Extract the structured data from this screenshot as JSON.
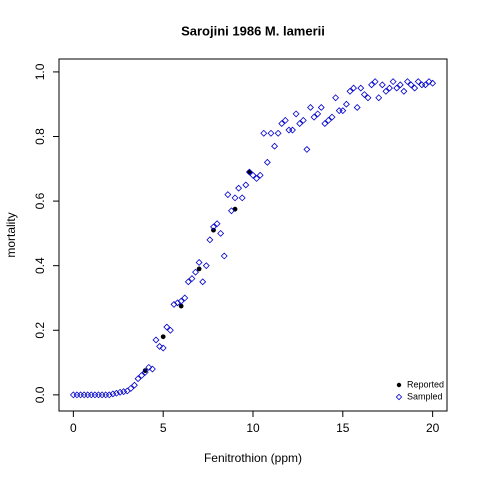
{
  "chart_data": {
    "type": "scatter",
    "title": "Sarojini 1986 M. lamerii",
    "xlabel": "Fenitrothion (ppm)",
    "ylabel": "mortality",
    "xlim": [
      -0.8,
      20.8
    ],
    "xticks": [
      0,
      5,
      10,
      15,
      20
    ],
    "ylim": [
      -0.05,
      1.04
    ],
    "yticks": [
      {
        "value": 0,
        "label": "0.0"
      },
      0.2,
      0.4,
      0.6,
      0.8,
      {
        "value": 1,
        "label": "1.0"
      }
    ],
    "legend": "bottomright",
    "series": [
      {
        "name": "Reported",
        "color": "#000000",
        "marker": "circle-filled",
        "x": [
          4,
          5,
          6,
          7,
          7.8,
          9,
          9.8
        ],
        "values": [
          0.075,
          0.18,
          0.275,
          0.39,
          0.51,
          0.575,
          0.69
        ]
      },
      {
        "name": "Sampled",
        "color": "#0000cd",
        "marker": "diamond",
        "x": [
          0,
          0.2,
          0.4,
          0.6,
          0.8,
          1,
          1.2,
          1.4,
          1.6,
          1.8,
          2,
          2.2,
          2.4,
          2.6,
          2.8,
          3,
          3.2,
          3.4,
          3.6,
          3.8,
          4,
          4.2,
          4.4,
          4.6,
          4.8,
          5,
          5.2,
          5.4,
          5.6,
          5.8,
          6,
          6.2,
          6.4,
          6.6,
          6.8,
          7,
          7.2,
          7.4,
          7.6,
          7.8,
          8,
          8.2,
          8.4,
          8.6,
          8.8,
          9,
          9.2,
          9.4,
          9.6,
          9.8,
          10,
          10.2,
          10.4,
          10.6,
          10.8,
          11,
          11.2,
          11.4,
          11.6,
          11.8,
          12,
          12.2,
          12.4,
          12.6,
          12.8,
          13,
          13.2,
          13.4,
          13.6,
          13.8,
          14,
          14.2,
          14.4,
          14.6,
          14.8,
          15,
          15.2,
          15.4,
          15.6,
          15.8,
          16,
          16.2,
          16.4,
          16.6,
          16.8,
          17,
          17.2,
          17.4,
          17.6,
          17.8,
          18,
          18.2,
          18.4,
          18.6,
          18.8,
          19,
          19.2,
          19.4,
          19.6,
          19.8,
          20
        ],
        "values": [
          0,
          0,
          0,
          0,
          0,
          0,
          0,
          0,
          0,
          0,
          0,
          0.003,
          0.005,
          0.008,
          0.01,
          0.012,
          0.02,
          0.03,
          0.05,
          0.06,
          0.07,
          0.085,
          0.08,
          0.17,
          0.15,
          0.145,
          0.21,
          0.2,
          0.28,
          0.285,
          0.29,
          0.3,
          0.35,
          0.36,
          0.38,
          0.41,
          0.35,
          0.4,
          0.48,
          0.52,
          0.53,
          0.5,
          0.43,
          0.62,
          0.57,
          0.61,
          0.64,
          0.61,
          0.65,
          0.69,
          0.68,
          0.67,
          0.68,
          0.81,
          0.72,
          0.81,
          0.77,
          0.81,
          0.84,
          0.85,
          0.82,
          0.82,
          0.87,
          0.84,
          0.85,
          0.76,
          0.89,
          0.86,
          0.87,
          0.89,
          0.84,
          0.85,
          0.86,
          0.92,
          0.88,
          0.88,
          0.9,
          0.94,
          0.95,
          0.89,
          0.95,
          0.93,
          0.92,
          0.96,
          0.97,
          0.92,
          0.96,
          0.94,
          0.95,
          0.97,
          0.95,
          0.96,
          0.94,
          0.97,
          0.96,
          0.95,
          0.97,
          0.96,
          0.96,
          0.97,
          0.965
        ]
      }
    ]
  }
}
